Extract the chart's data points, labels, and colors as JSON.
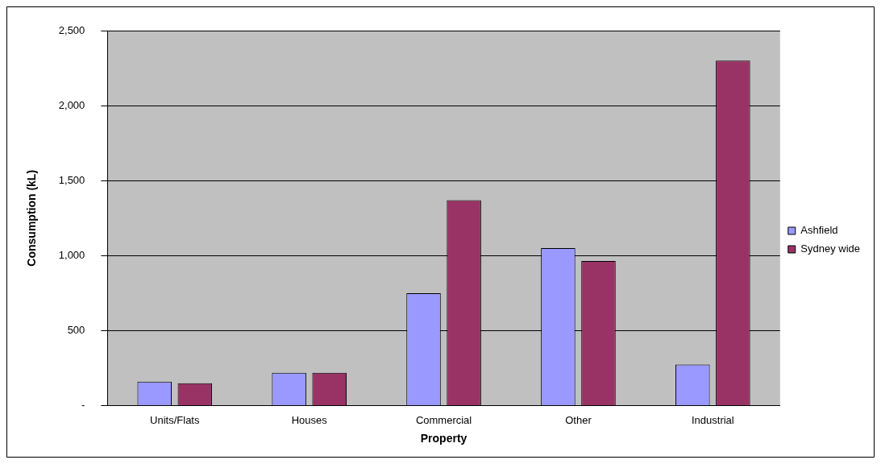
{
  "chart_data": {
    "type": "bar",
    "xlabel": "Property",
    "ylabel": "Consumption (kL)",
    "categories": [
      "Units/Flats",
      "Houses",
      "Commercial",
      "Other",
      "Industrial"
    ],
    "series": [
      {
        "name": "Ashfield",
        "color": "#9999ff",
        "values": [
          160,
          220,
          750,
          1050,
          275
        ]
      },
      {
        "name": "Sydney wide",
        "color": "#993366",
        "values": [
          150,
          220,
          1370,
          965,
          2300
        ]
      }
    ],
    "ylim": [
      0,
      2500
    ],
    "yticks": [
      {
        "value": 0,
        "label": "-"
      },
      {
        "value": 500,
        "label": "500"
      },
      {
        "value": 1000,
        "label": "1,000"
      },
      {
        "value": 1500,
        "label": "1,500"
      },
      {
        "value": 2000,
        "label": "2,000"
      },
      {
        "value": 2500,
        "label": "2,500"
      }
    ],
    "grid": "y",
    "legend": "right"
  }
}
